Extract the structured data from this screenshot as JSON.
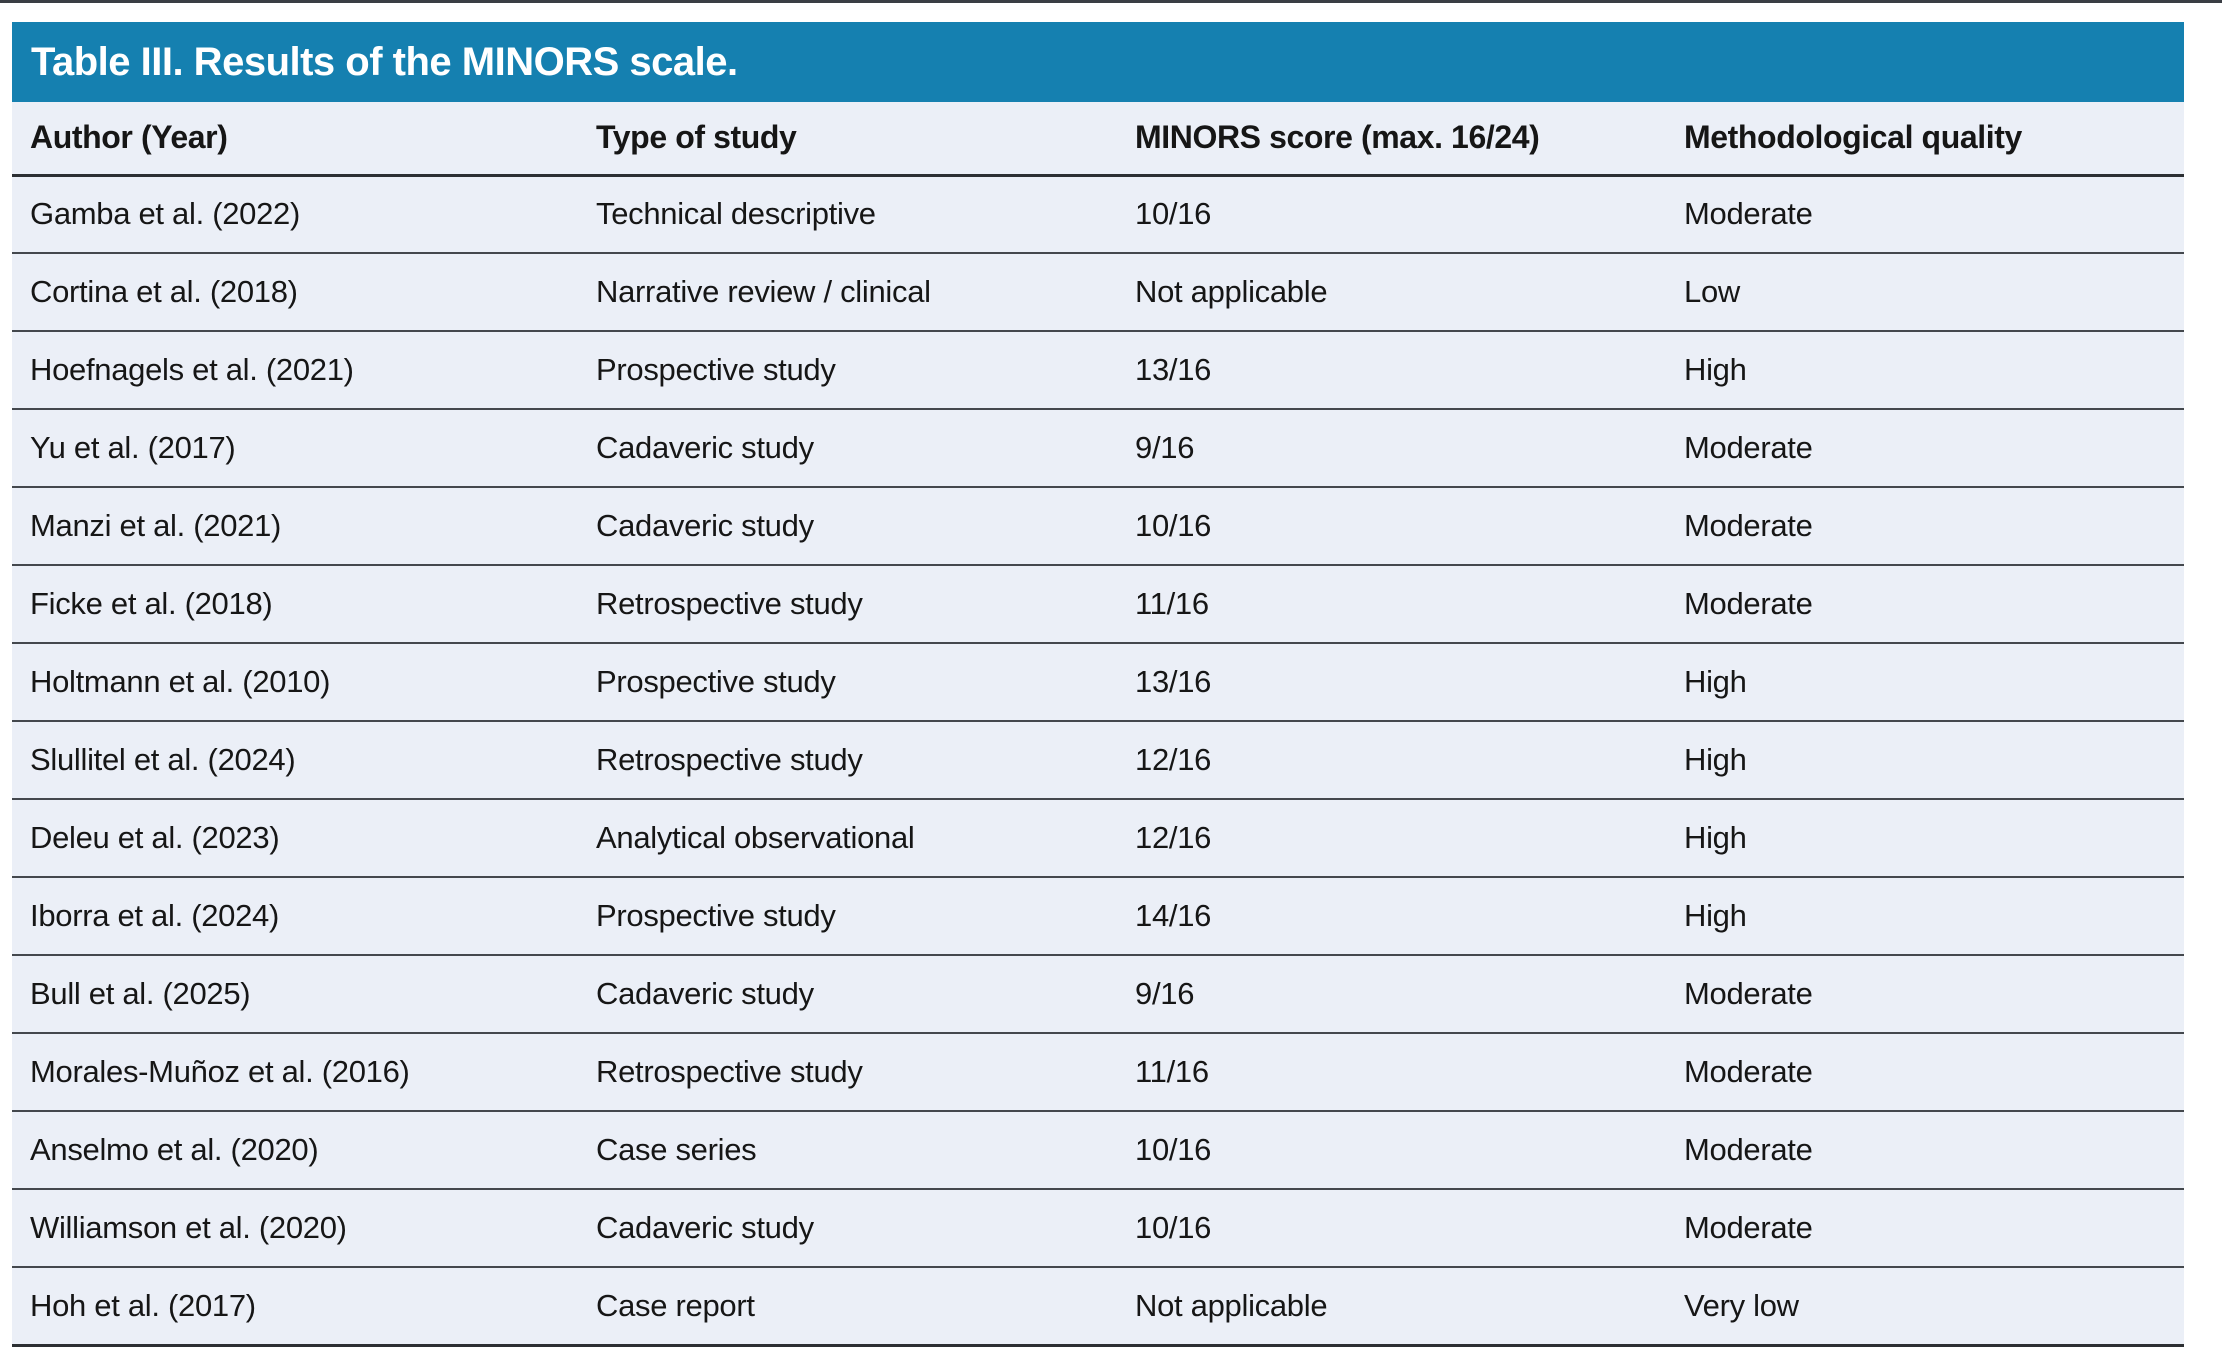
{
  "colors": {
    "page_bg": "#ffffff",
    "title_bar": "#1580b0",
    "title_text": "#ffffff",
    "row_bg": "#ebeff7",
    "text": "#161616",
    "row_line": "#44484d",
    "heavy_line": "#2c2f33",
    "top_rule": "#3a3e44"
  },
  "table": {
    "title": "Table III. Results of the MINORS scale.",
    "columns": [
      "Author (Year)",
      "Type of study",
      "MINORS score (max. 16/24)",
      "Methodological quality"
    ],
    "rows": [
      [
        "Gamba et al. (2022)",
        "Technical descriptive",
        "10/16",
        "Moderate"
      ],
      [
        "Cortina et al. (2018)",
        "Narrative review / clinical",
        "Not applicable",
        "Low"
      ],
      [
        "Hoefnagels et al. (2021)",
        "Prospective study",
        "13/16",
        "High"
      ],
      [
        "Yu et al. (2017)",
        "Cadaveric study",
        "9/16",
        "Moderate"
      ],
      [
        "Manzi et al. (2021)",
        "Cadaveric study",
        "10/16",
        "Moderate"
      ],
      [
        "Ficke et al. (2018)",
        "Retrospective study",
        "11/16",
        "Moderate"
      ],
      [
        "Holtmann et al. (2010)",
        "Prospective study",
        "13/16",
        "High"
      ],
      [
        "Slullitel et al. (2024)",
        "Retrospective study",
        "12/16",
        "High"
      ],
      [
        "Deleu et al. (2023)",
        "Analytical observational",
        "12/16",
        "High"
      ],
      [
        "Iborra et al. (2024)",
        "Prospective study",
        "14/16",
        "High"
      ],
      [
        "Bull et al. (2025)",
        "Cadaveric study",
        "9/16",
        "Moderate"
      ],
      [
        "Morales-Muñoz et al. (2016)",
        "Retrospective study",
        "11/16",
        "Moderate"
      ],
      [
        "Anselmo et al. (2020)",
        "Case series",
        "10/16",
        "Moderate"
      ],
      [
        "Williamson et al. (2020)",
        "Cadaveric study",
        "10/16",
        "Moderate"
      ],
      [
        "Hoh et al. (2017)",
        "Case report",
        "Not applicable",
        "Very low"
      ]
    ]
  }
}
